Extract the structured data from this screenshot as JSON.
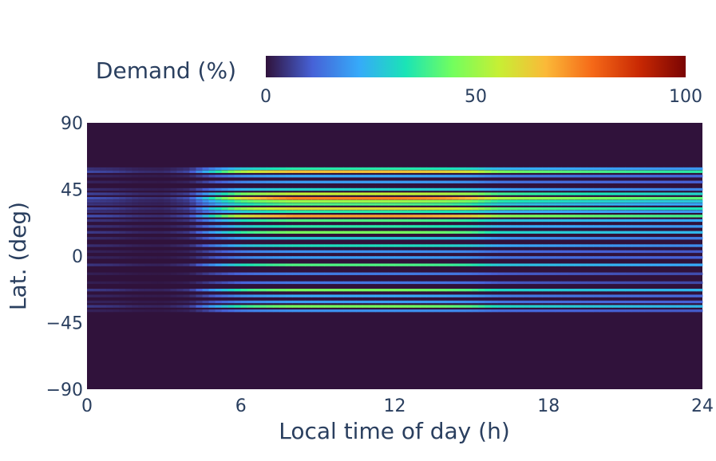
{
  "chart_data": {
    "type": "heatmap",
    "title": "",
    "xlabel": "Local time of day (h)",
    "ylabel": "Lat. (deg)",
    "x_range": [
      0,
      24
    ],
    "y_range": [
      -90,
      90
    ],
    "x_ticks": [
      0,
      6,
      12,
      18,
      24
    ],
    "y_ticks": [
      -90,
      -45,
      0,
      45,
      90
    ],
    "y_tick_labels": [
      "−90",
      "−45",
      "0",
      "45",
      "90"
    ],
    "colorbar": {
      "title": "Demand (%)",
      "range": [
        0,
        100
      ],
      "ticks": [
        0,
        50,
        100
      ],
      "placement": "top",
      "colorscale": "turbo",
      "colors": [
        "#30123b",
        "#4662d7",
        "#36aaf9",
        "#1ae4b6",
        "#72fe5e",
        "#c7ef34",
        "#fbb938",
        "#f56918",
        "#c92903",
        "#7a0403"
      ]
    },
    "time_profile": {
      "hours": [
        0,
        1,
        2,
        3,
        4,
        5,
        6,
        7,
        8,
        9,
        10,
        11,
        12,
        13,
        14,
        15,
        16,
        17,
        18,
        19,
        20,
        21,
        22,
        23,
        24
      ],
      "relative_level": [
        0.12,
        0.1,
        0.06,
        0.05,
        0.12,
        0.5,
        0.8,
        0.92,
        1.0,
        1.0,
        1.0,
        1.0,
        1.0,
        0.98,
        0.95,
        0.88,
        0.7,
        0.66,
        0.64,
        0.62,
        0.6,
        0.58,
        0.56,
        0.55,
        0.55
      ]
    },
    "latitude_bands": [
      {
        "lat": 59,
        "peak": 35
      },
      {
        "lat": 57,
        "peak": 65
      },
      {
        "lat": 54,
        "peak": 22
      },
      {
        "lat": 50,
        "peak": 20
      },
      {
        "lat": 45,
        "peak": 30
      },
      {
        "lat": 42,
        "peak": 55
      },
      {
        "lat": 39,
        "peak": 75
      },
      {
        "lat": 37,
        "peak": 50
      },
      {
        "lat": 35,
        "peak": 40
      },
      {
        "lat": 32,
        "peak": 60
      },
      {
        "lat": 30,
        "peak": 35
      },
      {
        "lat": 27,
        "peak": 70
      },
      {
        "lat": 24,
        "peak": 40
      },
      {
        "lat": 20,
        "peak": 35
      },
      {
        "lat": 16,
        "peak": 45
      },
      {
        "lat": 12,
        "peak": 28
      },
      {
        "lat": 7,
        "peak": 32
      },
      {
        "lat": 3,
        "peak": 18
      },
      {
        "lat": -1,
        "peak": 20
      },
      {
        "lat": -6,
        "peak": 40
      },
      {
        "lat": -12,
        "peak": 15
      },
      {
        "lat": -18,
        "peak": 14
      },
      {
        "lat": -23,
        "peak": 45
      },
      {
        "lat": -27,
        "peak": 22
      },
      {
        "lat": -31,
        "peak": 20
      },
      {
        "lat": -34,
        "peak": 45
      },
      {
        "lat": -37,
        "peak": 18
      }
    ]
  }
}
